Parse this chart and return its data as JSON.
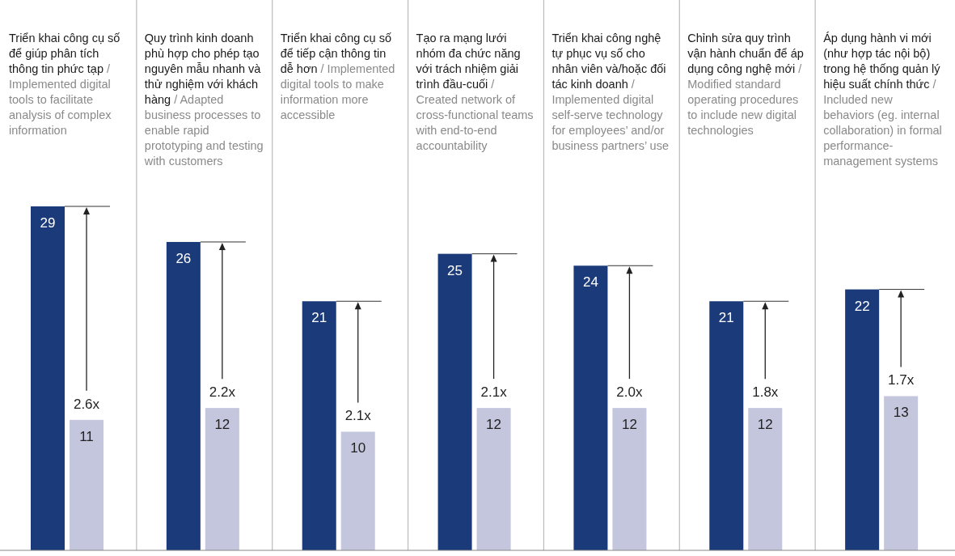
{
  "chart_data": {
    "type": "bar",
    "data_labels": true,
    "categories": [
      "Triển khai công cụ số để giúp phân tích thông tin phức tạp / Implemented digital tools to facilitate analysis of complex information",
      "Quy trình kinh doanh phù hợp cho phép tạo nguyên mẫu nhanh và thử nghiệm với khách hàng / Adapted business processes to enable rapid prototyping and testing with customers",
      "Triển khai công cụ số để tiếp cận thông tin dễ hơn / Implemented digital tools to make information more accessible",
      "Tạo ra mạng lưới nhóm đa chức năng với trách nhiệm giải trình đầu-cuối / Created network of cross-functional teams with end-to-end accountability",
      "Triển khai công nghệ tự phục vụ số cho nhân viên và/hoặc đối tác kinh doanh / Implemented digital self-serve technology for employees’ and/or business partners’ use",
      "Chỉnh sửa quy trình vận hành chuẩn để áp dụng công nghệ mới / Modified standard operating procedures to include new digital technologies",
      "Áp dụng hành vi mới (như hợp tác nội bộ) trong hệ thống quản lý hiệu suất chính thức / Included new behaviors (eg. internal collaboration) in formal performance-management systems"
    ],
    "series": [
      {
        "color": "#1b3a7a",
        "values": [
          29,
          26,
          21,
          25,
          24,
          21,
          22
        ]
      },
      {
        "color": "#c3c6dc",
        "values": [
          11,
          12,
          10,
          12,
          12,
          12,
          13
        ]
      }
    ],
    "annotations": [
      {
        "text": "2.6x",
        "x": "Triển khai công cụ số để giúp phân tích thông tin phức tạp / Implemented digital tools to facilitate analysis of complex information",
        "y": 11
      },
      {
        "text": "2.2x",
        "x": "Quy trình kinh doanh phù hợp cho phép tạo nguyên mẫu nhanh và thử nghiệm với khách hàng / Adapted business processes to enable rapid prototyping and testing with customers",
        "y": 12
      },
      {
        "text": "2.1x",
        "x": "Triển khai công cụ số để tiếp cận thông tin dễ hơn / Implemented digital tools to make information more accessible",
        "y": 10
      },
      {
        "text": "2.1x",
        "x": "Tạo ra mạng lưới nhóm đa chức năng với trách nhiệm giải trình đầu-cuối / Created network of cross-functional teams with end-to-end accountability",
        "y": 12
      },
      {
        "text": "2.0x",
        "x": "Triển khai công nghệ tự phục vụ số cho nhân viên và/hoặc đối tác kinh doanh / Implemented digital self-serve technology for employees’ and/or business partners’ use",
        "y": 12
      },
      {
        "text": "1.8x",
        "x": "Chỉnh sửa quy trình vận hành chuẩn để áp dụng công nghệ mới / Modified standard operating procedures to include new digital technologies",
        "y": 12
      },
      {
        "text": "1.7x",
        "x": "Áp dụng hành vi mới (như hợp tác nội bộ) trong hệ thống quản lý hiệu suất chính thức / Included new behaviors (eg. internal collaboration) in formal performance-management systems",
        "y": 13
      }
    ]
  }
}
